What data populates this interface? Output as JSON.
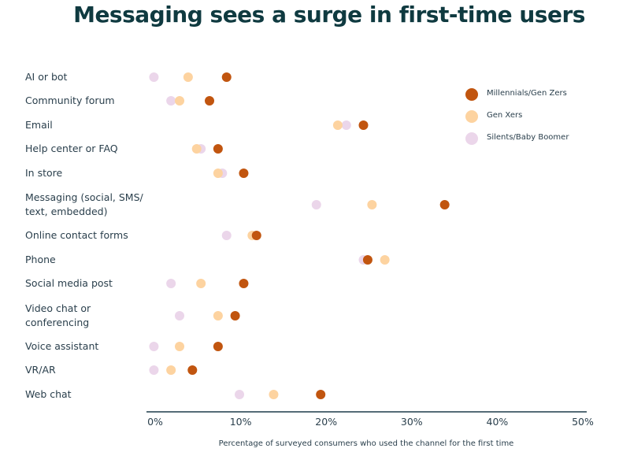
{
  "chart_data": {
    "type": "scatter",
    "title": "Messaging sees a surge in first-time users",
    "xlabel": "Percentage of surveyed consumers who used the channel for the first time",
    "ylabel": "",
    "xlim": [
      0,
      50
    ],
    "xticks": [
      "0%",
      "10%",
      "20%",
      "30%",
      "40%",
      "50%"
    ],
    "legend_position": "top-right",
    "categories": [
      [
        "AI or bot"
      ],
      [
        "Community forum"
      ],
      [
        "Email"
      ],
      [
        "Help center or FAQ"
      ],
      [
        "In store"
      ],
      [
        "Messaging (social, SMS/",
        "text, embedded)"
      ],
      [
        "Online contact forms"
      ],
      [
        "Phone"
      ],
      [
        "Social media post"
      ],
      [
        "Video chat or",
        "conferencing"
      ],
      [
        "Voice assistant"
      ],
      [
        "VR/AR"
      ],
      [
        "Web chat"
      ]
    ],
    "series": [
      {
        "name": "Millennials/Gen Zers",
        "color": "#c1550f",
        "values": [
          9.0,
          7.0,
          25.0,
          8.0,
          11.0,
          34.5,
          12.5,
          25.5,
          11.0,
          10.0,
          8.0,
          5.0,
          20.0
        ]
      },
      {
        "name": "Gen Xers",
        "color": "#fdd3a0",
        "values": [
          4.5,
          3.5,
          22.0,
          5.5,
          8.0,
          26.0,
          12.0,
          27.5,
          6.0,
          8.0,
          3.5,
          2.5,
          14.5
        ]
      },
      {
        "name": "Silents/Baby Boomer",
        "color": "#ebd6ea",
        "values": [
          0.5,
          2.5,
          23.0,
          6.0,
          8.5,
          19.5,
          9.0,
          25.0,
          2.5,
          3.5,
          0.5,
          0.5,
          10.5
        ]
      }
    ]
  }
}
